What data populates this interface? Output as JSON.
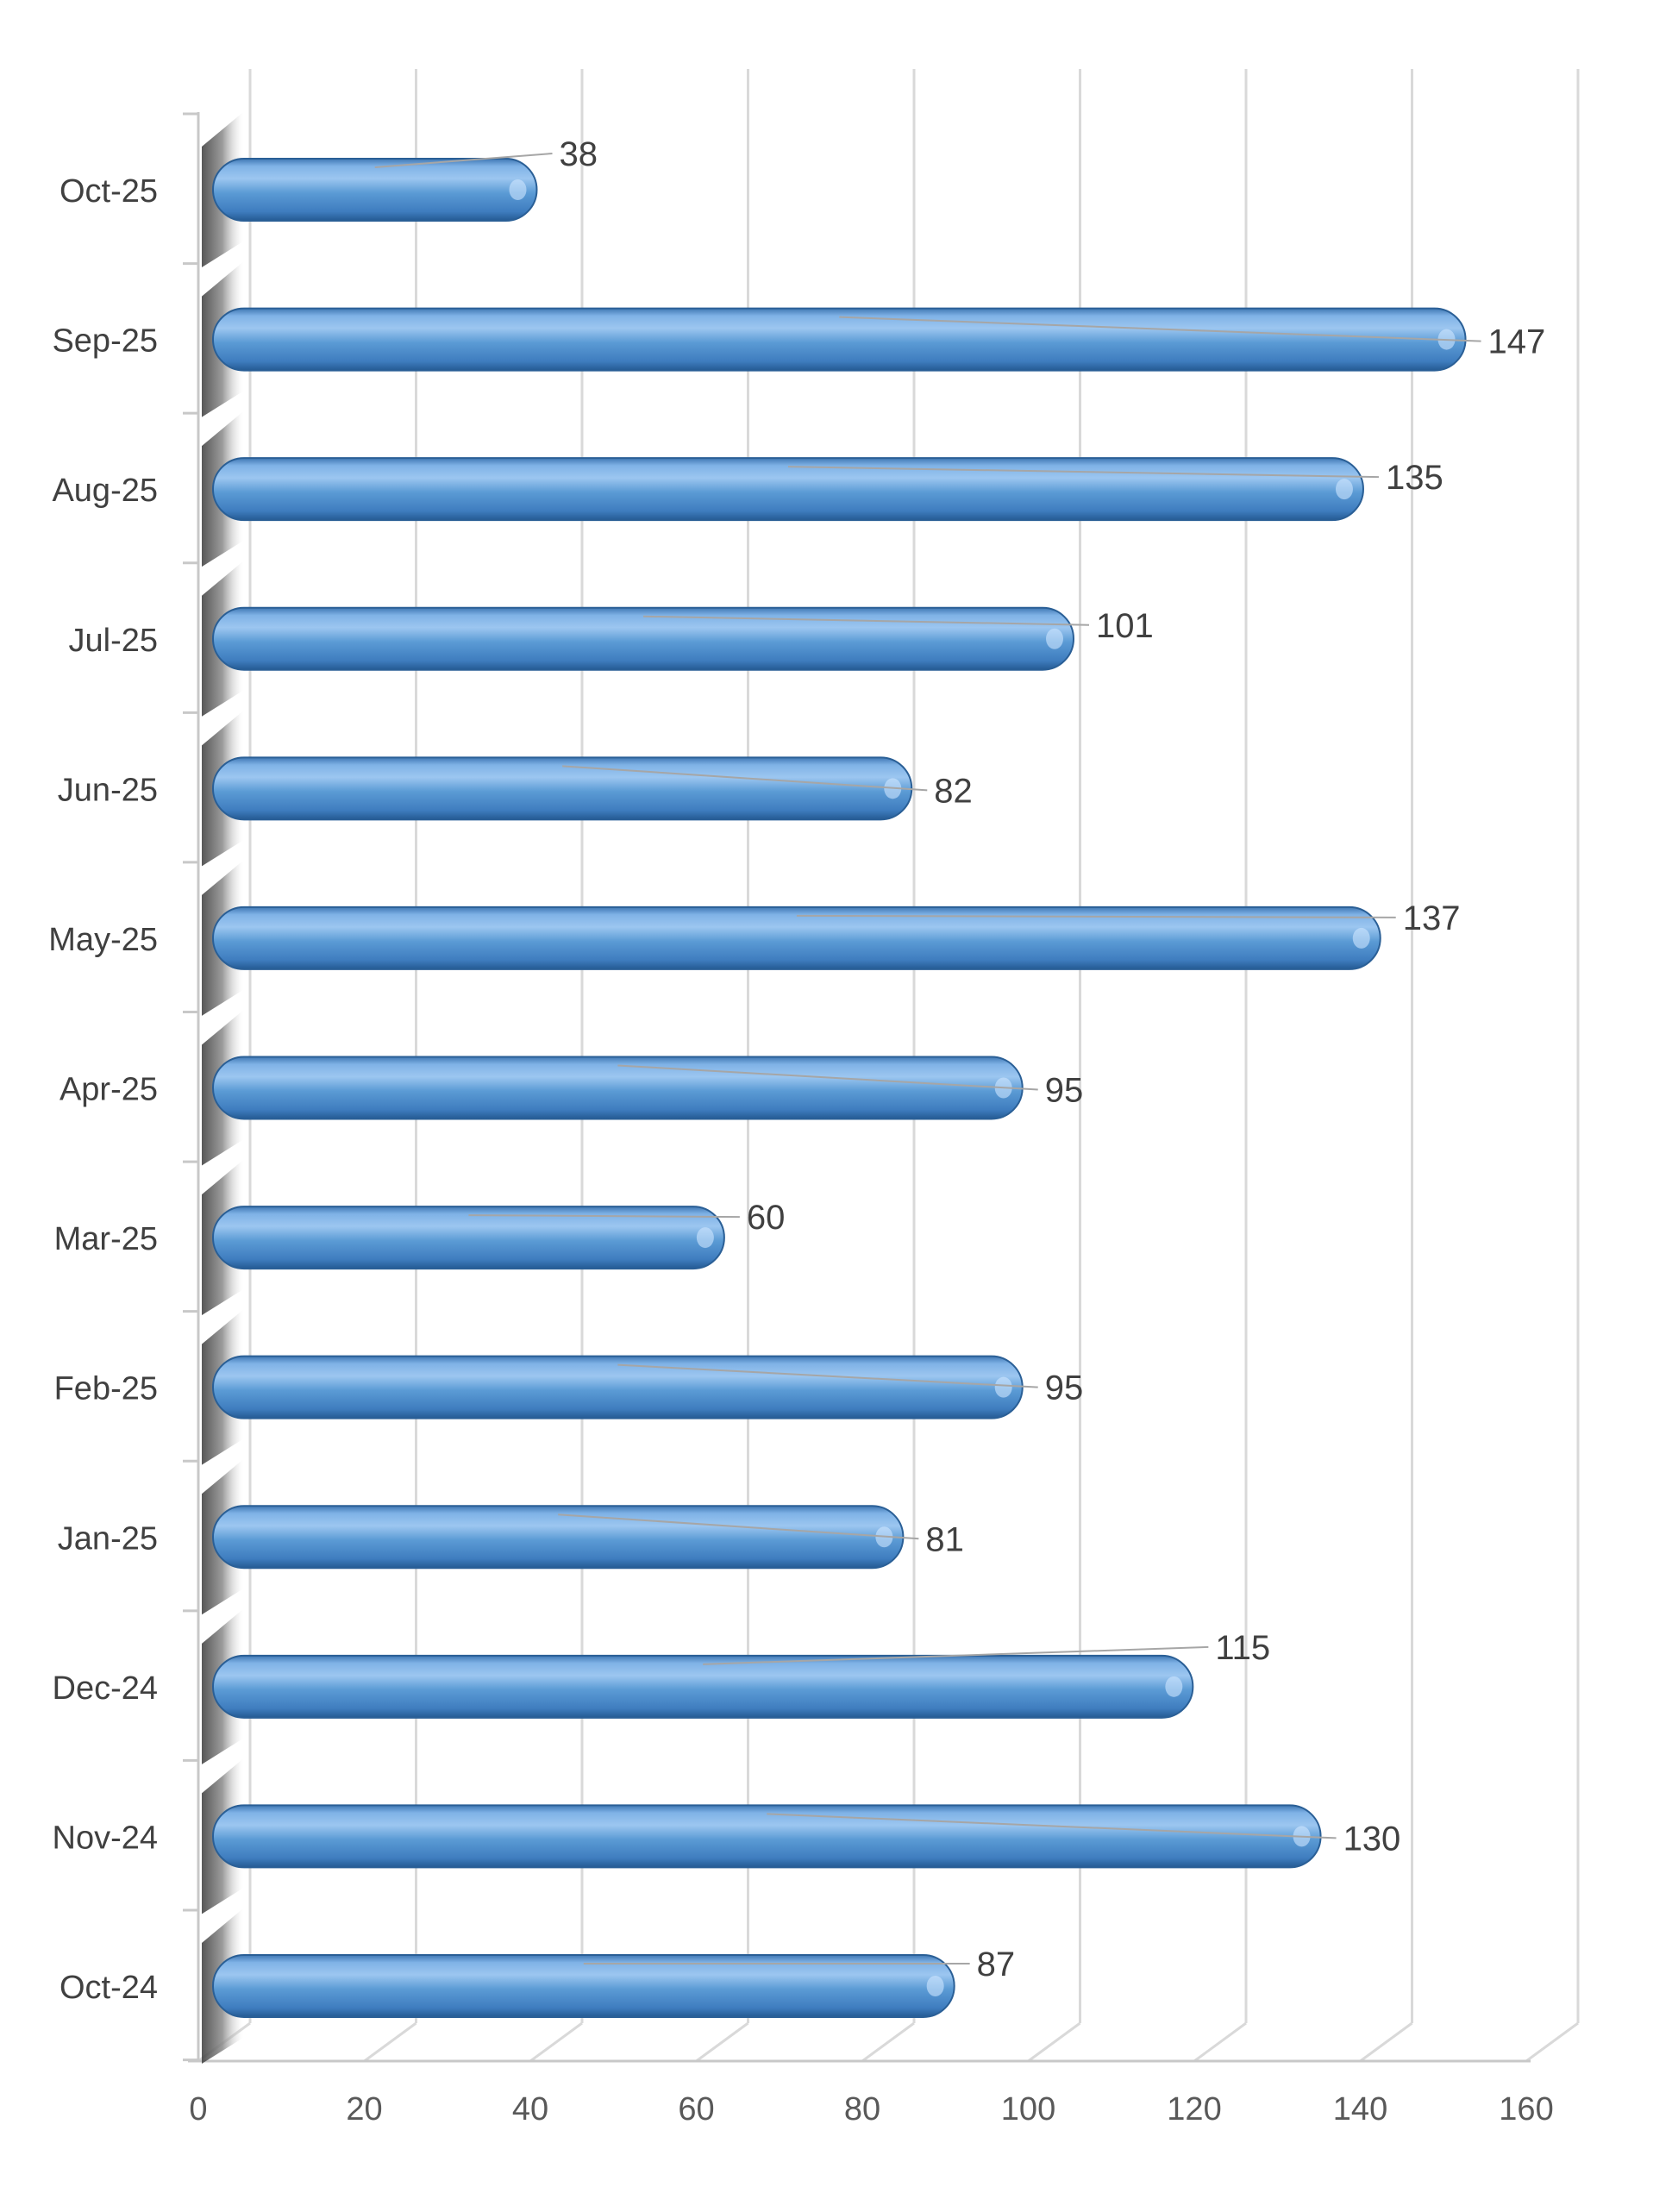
{
  "chart_data": {
    "type": "bar",
    "orientation": "horizontal",
    "style": "3d-cylinder",
    "categories": [
      "Oct-25",
      "Sep-25",
      "Aug-25",
      "Jul-25",
      "Jun-25",
      "May-25",
      "Apr-25",
      "Mar-25",
      "Feb-25",
      "Jan-25",
      "Dec-24",
      "Nov-24",
      "Oct-24"
    ],
    "values": [
      38,
      147,
      135,
      101,
      82,
      137,
      95,
      60,
      95,
      81,
      115,
      130,
      87
    ],
    "data_labels": [
      "38",
      "147",
      "135",
      "101",
      "82",
      "137",
      "95",
      "60",
      "95",
      "81",
      "115",
      "130",
      "87"
    ],
    "x_ticks": [
      0,
      20,
      40,
      60,
      80,
      100,
      120,
      140,
      160
    ],
    "x_tick_labels": [
      "0",
      "20",
      "40",
      "60",
      "80",
      "100",
      "120",
      "140",
      "160"
    ],
    "xlim": [
      0,
      160
    ],
    "title": "",
    "xlabel": "",
    "ylabel": "",
    "grid": true,
    "legend": "none",
    "colors": {
      "bar": "#5b9bd5",
      "bar_light": "#9cc6f0",
      "bar_dark": "#2f6aa7",
      "gridline": "#d9d9d9",
      "axis": "#c8c8c8",
      "label_text": "#404040",
      "leader_line": "#a6a6a6"
    }
  }
}
